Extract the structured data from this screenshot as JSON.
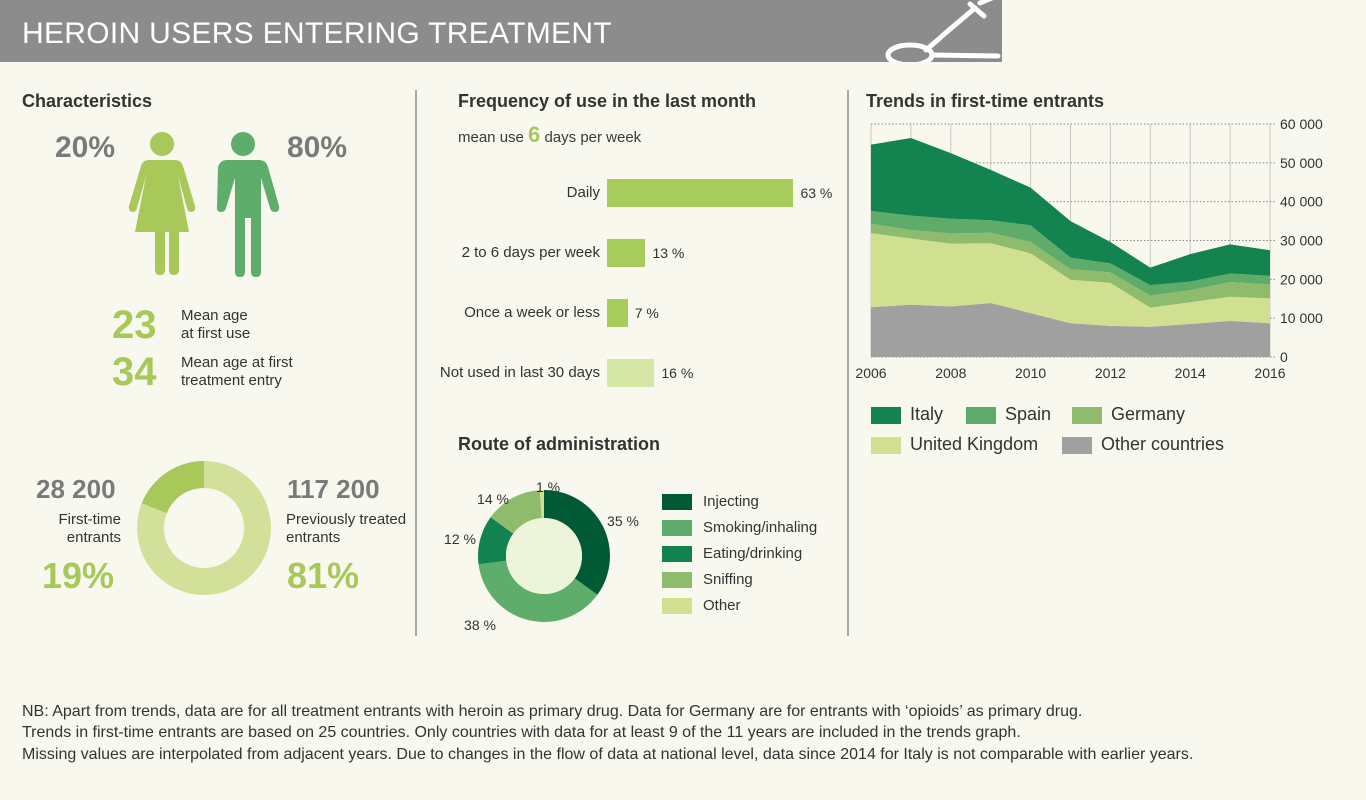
{
  "header": {
    "title": "HEROIN USERS ENTERING TREATMENT",
    "icon": "syringe-spoon-icon"
  },
  "characteristics": {
    "title": "Characteristics",
    "female_pct": "20%",
    "male_pct": "80%",
    "female_share": 20,
    "male_share": 80,
    "mean_age_first_use": "23",
    "mean_age_first_use_label": [
      "Mean age",
      "at first use"
    ],
    "mean_age_treatment": "34",
    "mean_age_treatment_label": [
      "Mean age at first",
      "treatment entry"
    ],
    "first_time": {
      "count": "28 200",
      "label": [
        "First-time",
        "entrants"
      ],
      "pct": "19%",
      "value": 19
    },
    "previously": {
      "count": "117 200",
      "label": [
        "Previously treated",
        "entrants"
      ],
      "pct": "81%",
      "value": 81
    },
    "colors": {
      "female": "#a8c85a",
      "male": "#5fad6b",
      "first_time": "#a8c85a",
      "previously": "#d2e09a"
    }
  },
  "frequency": {
    "title": "Frequency of use in the last month",
    "mean_prefix": "mean use",
    "mean_value": "6",
    "mean_suffix": "days per week",
    "chart_data": {
      "type": "bar",
      "orientation": "horizontal",
      "categories": [
        "Daily",
        "2 to 6 days per week",
        "Once a week or less",
        "Not used in last 30 days"
      ],
      "values": [
        63,
        13,
        7,
        16
      ],
      "labels": [
        "63 %",
        "13 %",
        "7 %",
        "16 %"
      ],
      "colors": [
        "#a8cc5c",
        "#a8cc5c",
        "#a8cc5c",
        "#d5e6a5"
      ]
    }
  },
  "route": {
    "title": "Route of administration",
    "chart_data": {
      "type": "pie",
      "donut": true,
      "categories": [
        "Injecting",
        "Smoking/inhaling",
        "Eating/drinking",
        "Sniffing",
        "Other"
      ],
      "values": [
        35,
        38,
        12,
        14,
        1
      ],
      "labels": [
        "35 %",
        "38 %",
        "12 %",
        "14 %",
        "1 %"
      ],
      "colors": [
        "#005a36",
        "#5fad6b",
        "#128350",
        "#8fbb6c",
        "#d0e090"
      ],
      "legend": "right"
    }
  },
  "trends": {
    "title": "Trends in first-time entrants",
    "chart_data": {
      "type": "area",
      "stacked": true,
      "x": [
        2006,
        2007,
        2008,
        2009,
        2010,
        2011,
        2012,
        2013,
        2014,
        2015,
        2016
      ],
      "xticks": [
        "2006",
        "2008",
        "2010",
        "2012",
        "2014",
        "2016"
      ],
      "yticks": [
        "0",
        "10 000",
        "20 000",
        "30 000",
        "40 000",
        "50 000",
        "60 000"
      ],
      "ylim": [
        0,
        60000
      ],
      "grid": true,
      "legend": "bottom",
      "series": [
        {
          "name": "Other countries",
          "color": "#a0a0a0",
          "values": [
            12800,
            13500,
            13000,
            13900,
            11300,
            8700,
            8000,
            7800,
            8500,
            9300,
            8700
          ]
        },
        {
          "name": "United Kingdom",
          "color": "#d0e090",
          "values": [
            19100,
            17000,
            16200,
            15400,
            15400,
            11200,
            11100,
            4900,
            5600,
            6200,
            6400
          ]
        },
        {
          "name": "Germany",
          "color": "#8fbb6c",
          "values": [
            2400,
            2200,
            2600,
            2700,
            2900,
            2700,
            2700,
            3100,
            3100,
            3800,
            3600
          ]
        },
        {
          "name": "Spain",
          "color": "#5eab6a",
          "values": [
            3300,
            3700,
            3800,
            3200,
            4300,
            3000,
            2300,
            2700,
            2200,
            2200,
            2200
          ]
        },
        {
          "name": "Italy",
          "color": "#138450",
          "values": [
            17100,
            20000,
            16900,
            13000,
            9700,
            9400,
            5500,
            4500,
            7100,
            7500,
            6600
          ]
        }
      ],
      "legend_order": [
        "Italy",
        "Spain",
        "Germany",
        "United Kingdom",
        "Other countries"
      ]
    }
  },
  "notes": [
    "NB: Apart from trends, data are for all treatment entrants with heroin as primary drug. Data for Germany are for entrants with ‘opioids’ as primary drug.",
    "Trends in first-time entrants are based on 25 countries. Only countries with data for at least 9 of the 11 years are included in the trends graph.",
    "Missing values are interpolated from adjacent years. Due to changes in the flow of data at national level, data since 2014 for Italy is not comparable with earlier years."
  ]
}
